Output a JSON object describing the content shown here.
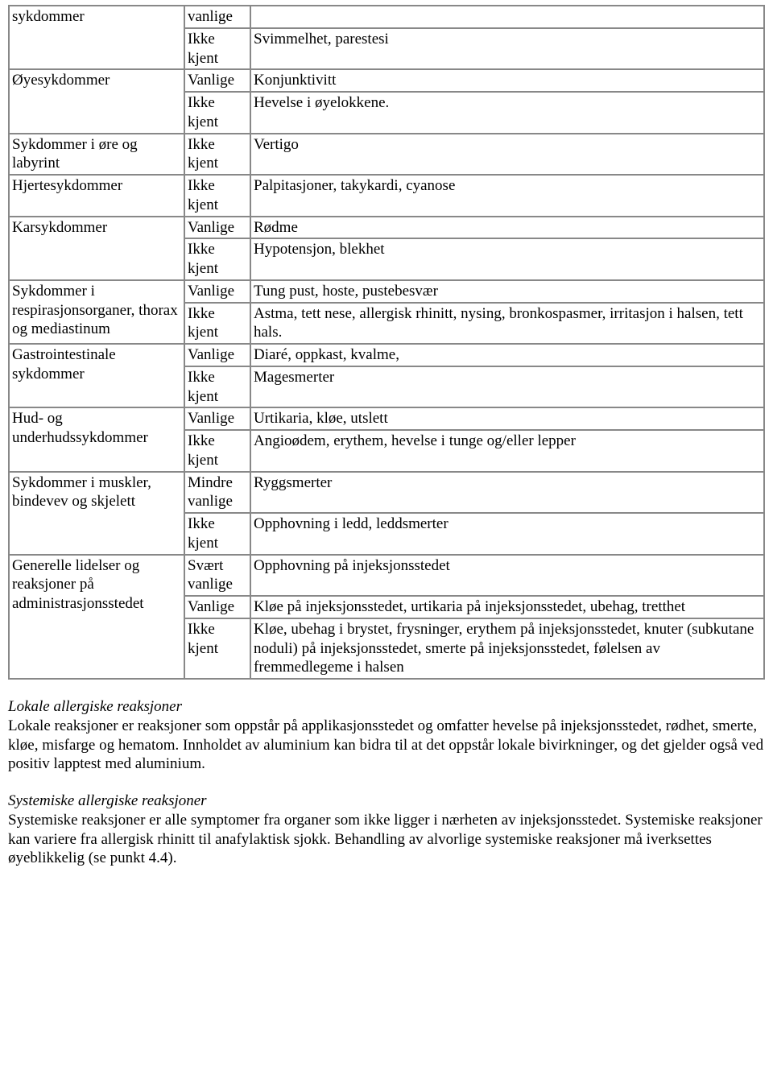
{
  "table": {
    "rows": [
      {
        "c1": "sykdommer",
        "c2": "vanlige",
        "c3": "",
        "c1_rowspan": 2
      },
      {
        "c2": "Ikke kjent",
        "c3": "Svimmelhet, parestesi"
      },
      {
        "c1": "Øyesykdommer",
        "c2": "Vanlige",
        "c3": "Konjunktivitt",
        "c1_rowspan": 2
      },
      {
        "c2": "Ikke kjent",
        "c3": "Hevelse i øyelokkene."
      },
      {
        "c1": "Sykdommer i øre og labyrint",
        "c2": "Ikke kjent",
        "c3": "Vertigo"
      },
      {
        "c1": "Hjertesykdommer",
        "c2": "Ikke kjent",
        "c3": "Palpitasjoner, takykardi, cyanose"
      },
      {
        "c1": "Karsykdommer",
        "c2": "Vanlige",
        "c3": "Rødme",
        "c1_rowspan": 2
      },
      {
        "c2": "Ikke kjent",
        "c3": "Hypotensjon, blekhet"
      },
      {
        "c1": "Sykdommer i respirasjonsorganer, thorax og mediastinum",
        "c2": "Vanlige",
        "c3": "Tung pust, hoste, pustebesvær",
        "c1_rowspan": 2
      },
      {
        "c2": "Ikke kjent",
        "c3": "Astma, tett nese, allergisk rhinitt, nysing, bronkospasmer, irritasjon i halsen, tett hals."
      },
      {
        "c1": "Gastrointestinale sykdommer",
        "c2": "Vanlige",
        "c3": "Diaré, oppkast, kvalme,",
        "c1_rowspan": 2
      },
      {
        "c2": "Ikke kjent",
        "c3": "Magesmerter"
      },
      {
        "c1": "Hud- og underhudssykdommer",
        "c2": "Vanlige",
        "c3": "Urtikaria, kløe, utslett",
        "c1_rowspan": 2
      },
      {
        "c2": "Ikke kjent",
        "c3": "Angioødem, erythem, hevelse i tunge og/eller lepper"
      },
      {
        "c1": "Sykdommer i muskler, bindevev og skjelett",
        "c2": "Mindre vanlige",
        "c3": "Ryggsmerter",
        "c1_rowspan": 2
      },
      {
        "c2": "Ikke kjent",
        "c3": "Opphovning i ledd, leddsmerter"
      },
      {
        "c1": "Generelle lidelser og reaksjoner på administrasjonsstedet",
        "c2": "Svært vanlige",
        "c3": "Opphovning på injeksjonsstedet",
        "c1_rowspan": 3
      },
      {
        "c2": "Vanlige",
        "c3": "Kløe på injeksjonsstedet, urtikaria på injeksjonsstedet, ubehag, tretthet"
      },
      {
        "c2": "Ikke kjent",
        "c3": "Kløe, ubehag i brystet, frysninger, erythem på injeksjonsstedet, knuter (subkutane noduli) på injeksjonsstedet, smerte på injeksjonsstedet, følelsen av fremmedlegeme i halsen"
      }
    ]
  },
  "sections": [
    {
      "title": "Lokale allergiske reaksjoner",
      "body": "Lokale reaksjoner er reaksjoner som oppstår på applikasjonsstedet og omfatter hevelse på injeksjonsstedet, rødhet, smerte, kløe, misfarge og hematom. Innholdet av aluminium kan bidra til at det oppstår lokale bivirkninger, og det gjelder også ved positiv lapptest med aluminium."
    },
    {
      "title": "Systemiske allergiske reaksjoner",
      "body": "Systemiske reaksjoner er alle symptomer fra organer som ikke ligger i nærheten av injeksjonsstedet. Systemiske reaksjoner kan variere fra allergisk rhinitt til anafylaktisk sjokk. Behandling av alvorlige systemiske reaksjoner må iverksettes øyeblikkelig (se punkt 4.4)."
    }
  ]
}
